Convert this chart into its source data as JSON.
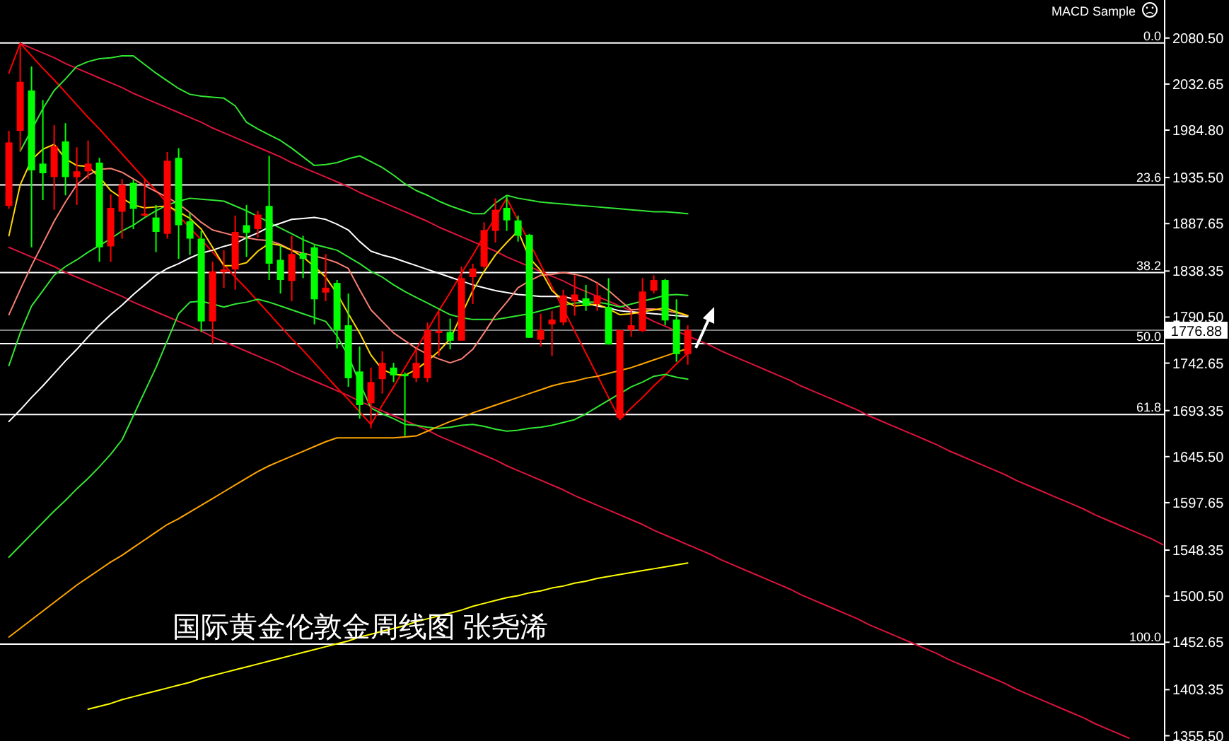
{
  "chart_data": {
    "type": "candlestick",
    "title": "国际黄金伦敦金周线图 张尧浠",
    "annotations": [
      "MACD Sample",
      {
        "text": "0.0",
        "y": 2075.4
      },
      {
        "text": "23.6",
        "y": 1927.9
      },
      {
        "text": "38.2",
        "y": 1836.7
      },
      {
        "text": "50.0",
        "y": 1763.0
      },
      {
        "text": "61.8",
        "y": 1689.3
      },
      {
        "text": "100.0",
        "y": 1450.6
      }
    ],
    "categories": [
      null,
      null,
      null,
      null,
      null,
      null,
      null,
      null,
      null,
      null,
      null,
      null,
      null,
      null,
      null,
      null,
      null,
      null,
      null,
      null,
      null,
      null,
      null,
      null,
      null,
      null,
      null,
      null,
      null,
      null,
      null,
      null,
      null,
      null,
      null,
      null,
      null,
      null,
      null,
      null,
      null,
      null,
      null,
      null,
      null,
      null,
      null,
      null,
      null,
      null,
      null,
      null,
      null,
      null,
      null,
      null,
      null,
      null,
      null,
      null,
      null,
      null,
      null,
      null,
      null,
      null,
      null,
      null,
      null,
      null,
      null,
      null,
      null,
      null,
      null,
      null,
      null,
      null,
      null,
      null,
      null,
      null,
      null,
      null,
      null,
      null,
      null,
      null,
      null,
      null,
      null,
      null,
      null,
      null,
      null,
      null,
      null,
      null,
      null,
      null,
      null,
      null,
      null
    ],
    "ohlc": [
      [
        1906,
        1984,
        1903,
        1972
      ],
      [
        1984,
        2075,
        1963,
        2035
      ],
      [
        2026,
        2051,
        1863,
        1943
      ],
      [
        1950,
        2016,
        1912,
        1940
      ],
      [
        1936,
        1990,
        1902,
        1968
      ],
      [
        1973,
        1992,
        1917,
        1936
      ],
      [
        1936,
        1967,
        1907,
        1942
      ],
      [
        1942,
        1974,
        1934,
        1950
      ],
      [
        1951,
        1956,
        1848,
        1863
      ],
      [
        1864,
        1918,
        1848,
        1904
      ],
      [
        1900,
        1934,
        1872,
        1928
      ],
      [
        1930,
        1933,
        1882,
        1903
      ],
      [
        1896,
        1935,
        1895,
        1898
      ],
      [
        1894,
        1907,
        1858,
        1879
      ],
      [
        1877,
        1962,
        1872,
        1953
      ],
      [
        1956,
        1966,
        1851,
        1886
      ],
      [
        1890,
        1899,
        1855,
        1872
      ],
      [
        1872,
        1880,
        1775,
        1786
      ],
      [
        1786,
        1848,
        1763,
        1838
      ],
      [
        1837,
        1860,
        1821,
        1840
      ],
      [
        1840,
        1896,
        1819,
        1879
      ],
      [
        1886,
        1907,
        1853,
        1878
      ],
      [
        1882,
        1901,
        1873,
        1897
      ],
      [
        1906,
        1958,
        1829,
        1846
      ],
      [
        1850,
        1865,
        1815,
        1829
      ],
      [
        1828,
        1875,
        1807,
        1856
      ],
      [
        1857,
        1875,
        1831,
        1851
      ],
      [
        1863,
        1865,
        1783,
        1809
      ],
      [
        1816,
        1856,
        1807,
        1821
      ],
      [
        1826,
        1829,
        1758,
        1777
      ],
      [
        1782,
        1815,
        1718,
        1727
      ],
      [
        1734,
        1760,
        1685,
        1699
      ],
      [
        1701,
        1738,
        1675,
        1723
      ],
      [
        1726,
        1755,
        1711,
        1743
      ],
      [
        1738,
        1743,
        1723,
        1730
      ],
      [
        1731,
        1733,
        1667,
        1729
      ],
      [
        1727,
        1758,
        1723,
        1743
      ],
      [
        1727,
        1785,
        1723,
        1777
      ],
      [
        1774,
        1796,
        1750,
        1776
      ],
      [
        1775,
        1789,
        1757,
        1766
      ],
      [
        1766,
        1843,
        1766,
        1831
      ],
      [
        1832,
        1846,
        1804,
        1841
      ],
      [
        1843,
        1889,
        1841,
        1881
      ],
      [
        1880,
        1914,
        1868,
        1902
      ],
      [
        1904,
        1916,
        1880,
        1891
      ],
      [
        1891,
        1896,
        1869,
        1875
      ],
      [
        1876,
        1877,
        1769,
        1769
      ],
      [
        1767,
        1794,
        1760,
        1777
      ],
      [
        1783,
        1797,
        1750,
        1788
      ],
      [
        1785,
        1819,
        1782,
        1813
      ],
      [
        1807,
        1834,
        1792,
        1814
      ],
      [
        1810,
        1824,
        1797,
        1802
      ],
      [
        1804,
        1826,
        1797,
        1813
      ],
      [
        1801,
        1831,
        1762,
        1762
      ],
      [
        1686,
        1777,
        1684,
        1777
      ],
      [
        1777,
        1797,
        1770,
        1782
      ],
      [
        1776,
        1831,
        1775,
        1817
      ],
      [
        1818,
        1834,
        1815,
        1829
      ],
      [
        1829,
        1830,
        1782,
        1787
      ],
      [
        1788,
        1809,
        1744,
        1752
      ],
      [
        1752,
        1782,
        1741,
        1777
      ],
      null,
      null,
      null,
      null,
      null,
      null,
      null,
      null,
      null,
      null,
      null,
      null,
      null,
      null,
      null,
      null,
      null,
      null,
      null,
      null,
      null,
      null,
      null,
      null,
      null,
      null,
      null,
      null,
      null,
      null,
      null,
      null,
      null,
      null,
      null,
      null,
      null,
      null,
      null,
      null,
      null,
      null
    ],
    "colors": [
      "#ff0000",
      "#ff0000",
      "#00ff00",
      "#00ff00",
      "#ff0000",
      "#00ff00",
      "#ff0000",
      "#ff0000",
      "#00ff00",
      "#ff0000",
      "#ff0000",
      "#00ff00",
      "#ff0000",
      "#00ff00",
      "#ff0000",
      "#00ff00",
      "#00ff00",
      "#00ff00",
      "#ff0000",
      "#ff0000",
      "#ff0000",
      "#00ff00",
      "#ff0000",
      "#00ff00",
      "#00ff00",
      "#ff0000",
      "#00ff00",
      "#00ff00",
      "#ff0000",
      "#00ff00",
      "#00ff00",
      "#00ff00",
      "#ff0000",
      "#ff0000",
      "#00ff00",
      "#00ff00",
      "#ff0000",
      "#ff0000",
      "#ff0000",
      "#00ff00",
      "#ff0000",
      "#ff0000",
      "#ff0000",
      "#ff0000",
      "#00ff00",
      "#00ff00",
      "#00ff00",
      "#ff0000",
      "#ff0000",
      "#ff0000",
      "#ff0000",
      "#00ff00",
      "#ff0000",
      "#00ff00",
      "#ff0000",
      "#ff0000",
      "#ff0000",
      "#ff0000",
      "#00ff00",
      "#00ff00",
      "#ff0000",
      null,
      null,
      null,
      null,
      null,
      null,
      null,
      null,
      null,
      null,
      null,
      null,
      null,
      null,
      null,
      null,
      null,
      null,
      null,
      null,
      null,
      null,
      null,
      null,
      null,
      null,
      null,
      null,
      null,
      null,
      null,
      null,
      null,
      null,
      null,
      null,
      null,
      null,
      null,
      null,
      null,
      null
    ],
    "series": [
      {
        "type": "line",
        "color": "#dc143c",
        "values": [
          null,
          2075,
          2070,
          2065,
          2060,
          2054,
          2049,
          2044,
          2039,
          2034,
          2029,
          2023,
          2018,
          2013,
          2008,
          2003,
          1998,
          1993,
          1987,
          1982,
          1977,
          1972,
          1967,
          1962,
          1957,
          1951,
          1946,
          1941,
          1936,
          1931,
          1926,
          1920,
          1915,
          1910,
          1905,
          1900,
          1895,
          1890,
          1884,
          1879,
          1874,
          1869,
          1864,
          1859,
          1853,
          1848,
          1843,
          1838,
          1833,
          1828,
          1822,
          1817,
          1812,
          1807,
          1802,
          1797,
          1792,
          1786,
          1781,
          1776,
          1771,
          1766,
          1761,
          1755,
          1750,
          1745,
          1740,
          1735,
          1730,
          1725,
          1719,
          1714,
          1709,
          1704,
          1699,
          1694,
          1688,
          1683,
          1678,
          1673,
          1668,
          1663,
          1658,
          1652,
          1647,
          1642,
          1637,
          1632,
          1627,
          1621,
          1616,
          1611,
          1606,
          1601,
          1596,
          1591,
          1585,
          1580,
          1575,
          1570,
          1565,
          1560,
          1554
        ]
      },
      {
        "type": "line",
        "color": "#dc143c",
        "values": [
          1863,
          1858,
          1853,
          1848,
          1843,
          1837,
          1832,
          1827,
          1822,
          1817,
          1812,
          1806,
          1801,
          1796,
          1791,
          1786,
          1781,
          1776,
          1770,
          1765,
          1760,
          1755,
          1750,
          1745,
          1740,
          1734,
          1729,
          1724,
          1719,
          1714,
          1709,
          1703,
          1698,
          1693,
          1688,
          1683,
          1678,
          1673,
          1667,
          1662,
          1657,
          1652,
          1647,
          1642,
          1636,
          1631,
          1626,
          1621,
          1616,
          1611,
          1605,
          1600,
          1595,
          1590,
          1585,
          1580,
          1575,
          1569,
          1564,
          1559,
          1554,
          1549,
          1544,
          1538,
          1533,
          1528,
          1523,
          1518,
          1513,
          1508,
          1502,
          1497,
          1492,
          1487,
          1482,
          1477,
          1471,
          1466,
          1461,
          1456,
          1451,
          1446,
          1441,
          1435,
          1430,
          1425,
          1420,
          1415,
          1410,
          1404,
          1399,
          1394,
          1389,
          1384,
          1379,
          1374,
          1368,
          1363,
          1358,
          1353,
          null,
          null,
          null
        ]
      },
      {
        "type": "line",
        "color": "#ff0000",
        "values": [
          2044,
          2075,
          2062,
          2049,
          2037,
          2024,
          2011,
          1998,
          1986,
          1973,
          1960,
          1947,
          1934,
          1922,
          1909,
          1896,
          1883,
          1871,
          1858,
          1845,
          1832,
          1820,
          1807,
          1794,
          1781,
          1768,
          1756,
          1743,
          1730,
          1717,
          1705,
          1692,
          1679,
          1699,
          1718,
          1738,
          1757,
          1777,
          1797,
          1816,
          1836,
          1855,
          1875,
          1894,
          1914,
          1891,
          null,
          1845,
          1822,
          1799,
          1776,
          1753,
          1730,
          1707,
          1684,
          1696,
          1707,
          1719,
          1730,
          1742,
          1753,
          null,
          null,
          null,
          null,
          null,
          null,
          null,
          null,
          null,
          null,
          null,
          null,
          null,
          null,
          null,
          null,
          null,
          null,
          null,
          null,
          null,
          null,
          null,
          null,
          null,
          null,
          null,
          null,
          null,
          null,
          null,
          null,
          null,
          null,
          null,
          null,
          null,
          null,
          null,
          null,
          null,
          null
        ]
      },
      {
        "type": "line",
        "color": "#32e632",
        "values": [
          null,
          1963,
          1985,
          2007,
          2026,
          2038,
          2051,
          2056,
          2059,
          2060,
          2062,
          2062,
          2053,
          2044,
          2036,
          2028,
          2022,
          2020,
          2019,
          2018,
          2010,
          1993,
          1986,
          1980,
          1974,
          1966,
          1957,
          1948,
          1949,
          1951,
          1955,
          1958,
          1952,
          1946,
          1938,
          1929,
          1922,
          1917,
          1911,
          1906,
          1902,
          1898,
          1898,
          1909,
          1917,
          1914,
          1912,
          1910,
          1909,
          1908,
          1907,
          1906,
          1905,
          1904,
          1903,
          1902,
          1901,
          1900,
          1900,
          1899,
          1898,
          null,
          null,
          null,
          null,
          null,
          null,
          null,
          null,
          null,
          null,
          null,
          null,
          null,
          null,
          null,
          null,
          null,
          null,
          null,
          null,
          null,
          null,
          null,
          null,
          null,
          null,
          null,
          null,
          null,
          null,
          null,
          null,
          null,
          null,
          null,
          null,
          null,
          null,
          null,
          null,
          null,
          null
        ]
      },
      {
        "type": "line",
        "color": "#32e632",
        "values": [
          1740,
          1774,
          1802,
          1818,
          1834,
          1843,
          1850,
          1858,
          1865,
          1872,
          1880,
          1886,
          1894,
          1901,
          1907,
          1911,
          1914,
          1913,
          1912,
          1911,
          1906,
          1901,
          1895,
          1889,
          1883,
          1877,
          1871,
          1866,
          1863,
          1860,
          1853,
          1846,
          1838,
          1832,
          1824,
          1817,
          1811,
          1805,
          1799,
          1793,
          1790,
          1788,
          1788,
          1788,
          1790,
          1792,
          1794,
          1797,
          1800,
          1803,
          1805,
          1806,
          1806,
          1804,
          1801,
          1804,
          1807,
          1810,
          1813,
          1814,
          1813,
          null,
          null,
          null,
          null,
          null,
          null,
          null,
          null,
          null,
          null,
          null,
          null,
          null,
          null,
          null,
          null,
          null,
          null,
          null,
          null,
          null,
          null,
          null,
          null,
          null,
          null,
          null,
          null,
          null,
          null,
          null,
          null,
          null,
          null,
          null,
          null,
          null,
          null,
          null,
          null,
          null,
          null
        ]
      },
      {
        "type": "line",
        "color": "#32e632",
        "values": [
          1541,
          1553,
          1565,
          1577,
          1589,
          1600,
          1612,
          1623,
          1635,
          1648,
          1663,
          1688,
          1713,
          1738,
          1766,
          1794,
          1806,
          1807,
          1804,
          1801,
          1804,
          1806,
          1809,
          1806,
          1802,
          1798,
          1794,
          1790,
          1786,
          1771,
          1750,
          1722,
          1696,
          1690,
          1685,
          1679,
          1678,
          1676,
          1675,
          1676,
          1678,
          1679,
          1677,
          1674,
          1672,
          1673,
          1675,
          1676,
          1678,
          1681,
          1684,
          1690,
          1697,
          1704,
          1711,
          1718,
          1723,
          1729,
          1731,
          1728,
          1726,
          null,
          null,
          null,
          null,
          null,
          null,
          null,
          null,
          null,
          null,
          null,
          null,
          null,
          null,
          null,
          null,
          null,
          null,
          null,
          null,
          null,
          null,
          null,
          null,
          null,
          null,
          null,
          null,
          null,
          null,
          null,
          null,
          null,
          null,
          null,
          null,
          null,
          null,
          null,
          null,
          null,
          null
        ]
      },
      {
        "type": "line",
        "color": "#ffffff",
        "values": [
          1682,
          1694,
          1707,
          1719,
          1732,
          1745,
          1757,
          1770,
          1782,
          1793,
          1803,
          1814,
          1824,
          1834,
          1841,
          1846,
          1852,
          1857,
          1860,
          1864,
          1867,
          1873,
          1878,
          1884,
          1888,
          1892,
          1893,
          1894,
          1892,
          1887,
          1881,
          1869,
          1859,
          1855,
          1852,
          1848,
          1844,
          1840,
          1836,
          1832,
          1828,
          1824,
          1821,
          1818,
          1816,
          1814,
          1813,
          1812,
          1812,
          1812,
          1809,
          1805,
          1802,
          1800,
          1797,
          1796,
          1795,
          1794,
          1793,
          1792,
          1791,
          null,
          null,
          null,
          null,
          null,
          null,
          null,
          null,
          null,
          null,
          null,
          null,
          null,
          null,
          null,
          null,
          null,
          null,
          null,
          null,
          null,
          null,
          null,
          null,
          null,
          null,
          null,
          null,
          null,
          null,
          null,
          null,
          null,
          null,
          null,
          null,
          null,
          null,
          null,
          null,
          null,
          null
        ]
      },
      {
        "type": "line",
        "color": "#fa8072",
        "values": [
          1793,
          1819,
          1844,
          1867,
          1890,
          1910,
          1928,
          1938,
          1944,
          1945,
          1941,
          1934,
          1927,
          1921,
          1915,
          1908,
          1899,
          1889,
          1881,
          1878,
          1875,
          1873,
          1871,
          1870,
          1866,
          1860,
          1857,
          1854,
          1851,
          1847,
          1841,
          1819,
          1798,
          1786,
          1774,
          1766,
          1758,
          1752,
          1747,
          1743,
          1747,
          1757,
          1774,
          1792,
          1806,
          1821,
          1828,
          1834,
          1835,
          1837,
          1835,
          1832,
          1826,
          1818,
          1808,
          1798,
          1799,
          1799,
          1797,
          1795,
          1792,
          null,
          null,
          null,
          null,
          null,
          null,
          null,
          null,
          null,
          null,
          null,
          null,
          null,
          null,
          null,
          null,
          null,
          null,
          null,
          null,
          null,
          null,
          null,
          null,
          null,
          null,
          null,
          null,
          null,
          null,
          null,
          null,
          null,
          null,
          null,
          null,
          null,
          null,
          null,
          null,
          null,
          null
        ]
      },
      {
        "type": "line",
        "color": "#ffd700",
        "values": [
          1875,
          1928,
          1954,
          1965,
          1970,
          1955,
          1948,
          1947,
          1936,
          1922,
          1914,
          1907,
          1904,
          1905,
          1906,
          1900,
          1893,
          1882,
          1863,
          1844,
          1844,
          1847,
          1859,
          1867,
          1865,
          1860,
          1853,
          1843,
          1832,
          1815,
          1794,
          1774,
          1751,
          1736,
          1731,
          1730,
          1736,
          1745,
          1755,
          1768,
          1793,
          1818,
          1838,
          1855,
          1868,
          1880,
          1852,
          1839,
          1818,
          1808,
          1802,
          1803,
          1804,
          1799,
          1793,
          1794,
          1796,
          1798,
          1800,
          1796,
          1792,
          null,
          null,
          null,
          null,
          null,
          null,
          null,
          null,
          null,
          null,
          null,
          null,
          null,
          null,
          null,
          null,
          null,
          null,
          null,
          null,
          null,
          null,
          null,
          null,
          null,
          null,
          null,
          null,
          null,
          null,
          null,
          null,
          null,
          null,
          null,
          null,
          null,
          null,
          null,
          null,
          null,
          null
        ]
      },
      {
        "type": "line",
        "color": "#ffa500",
        "values": [
          1458,
          1467,
          1476,
          1485,
          1494,
          1503,
          1512,
          1520,
          1528,
          1536,
          1543,
          1551,
          1559,
          1567,
          1575,
          1581,
          1588,
          1595,
          1602,
          1609,
          1616,
          1623,
          1630,
          1636,
          1641,
          1646,
          1651,
          1656,
          1661,
          1665,
          1665,
          1665,
          1665,
          1665,
          1665,
          1666,
          1667,
          1672,
          1677,
          1682,
          1686,
          1691,
          1695,
          1699,
          1703,
          1707,
          1711,
          1715,
          1719,
          1722,
          1724,
          1727,
          1729,
          1732,
          1735,
          1738,
          1742,
          1746,
          1750,
          1754,
          1758,
          null,
          null,
          null,
          null,
          null,
          null,
          null,
          null,
          null,
          null,
          null,
          null,
          null,
          null,
          null,
          null,
          null,
          null,
          null,
          null,
          null,
          null,
          null,
          null,
          null,
          null,
          null,
          null,
          null,
          null,
          null,
          null,
          null,
          null,
          null,
          null,
          null,
          null,
          null,
          null,
          null,
          null
        ]
      },
      {
        "type": "line",
        "color": "#ffff00",
        "values": [
          null,
          null,
          null,
          null,
          null,
          null,
          null,
          1383,
          1386,
          1389,
          1393,
          1396,
          1399,
          1402,
          1405,
          1408,
          1411,
          1415,
          1418,
          1421,
          1424,
          1427,
          1430,
          1433,
          1436,
          1439,
          1442,
          1445,
          1448,
          1451,
          1454,
          1458,
          1461,
          1464,
          1467,
          1470,
          1474,
          1477,
          1480,
          1483,
          1486,
          1490,
          1493,
          1496,
          1499,
          1501,
          1504,
          1506,
          1509,
          1511,
          1514,
          1516,
          1519,
          1521,
          1523,
          1525,
          1527,
          1529,
          1531,
          1533,
          1535,
          null,
          null,
          null,
          null,
          null,
          null,
          null,
          null,
          null,
          null,
          null,
          null,
          null,
          null,
          null,
          null,
          null,
          null,
          null,
          null,
          null,
          null,
          null,
          null,
          null,
          null,
          null,
          null,
          null,
          null,
          null,
          null,
          null,
          null,
          null,
          null,
          null,
          null,
          null,
          null,
          null,
          null
        ]
      }
    ],
    "ref_lines": [
      {
        "axis": "y",
        "value": 2075.4,
        "color": "#ffffff"
      },
      {
        "axis": "y",
        "value": 1927.9,
        "color": "#ffffff"
      },
      {
        "axis": "y",
        "value": 1836.7,
        "color": "#ffffff"
      },
      {
        "axis": "y",
        "value": 1763.0,
        "color": "#ffffff"
      },
      {
        "axis": "y",
        "value": 1689.3,
        "color": "#ffffff"
      },
      {
        "axis": "y",
        "value": 1450.6,
        "color": "#ffffff"
      },
      {
        "axis": "y",
        "value": 1776.88,
        "label": "1776.88",
        "color": "#808080"
      }
    ],
    "ylim": [
      1350,
      2120
    ],
    "yticks": [
      {
        "value": 2080.5,
        "label": "2080.50"
      },
      {
        "value": 2032.65,
        "label": "2032.65"
      },
      {
        "value": 1984.8,
        "label": "1984.80"
      },
      {
        "value": 1935.5,
        "label": "1935.50"
      },
      {
        "value": 1887.65,
        "label": "1887.65"
      },
      {
        "value": 1838.35,
        "label": "1838.35"
      },
      {
        "value": 1790.5,
        "label": "1790.50"
      },
      {
        "value": 1742.65,
        "label": "1742.65"
      },
      {
        "value": 1693.35,
        "label": "1693.35"
      },
      {
        "value": 1645.5,
        "label": "1645.50"
      },
      {
        "value": 1597.65,
        "label": "1597.65"
      },
      {
        "value": 1548.35,
        "label": "1548.35"
      },
      {
        "value": 1500.5,
        "label": "1500.50"
      },
      {
        "value": 1452.65,
        "label": "1452.65"
      },
      {
        "value": 1403.35,
        "label": "1403.35"
      },
      {
        "value": 1355.5,
        "label": "1355.50"
      }
    ],
    "tick_labels": "y"
  }
}
